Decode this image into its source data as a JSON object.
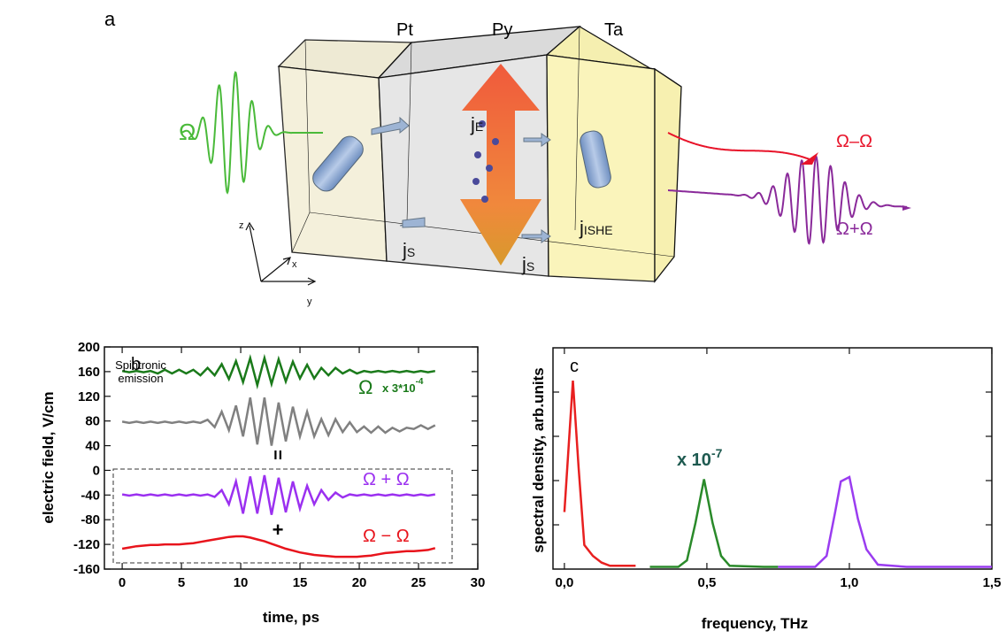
{
  "diagram": {
    "panel": "a",
    "layers": [
      "Pt",
      "Py",
      "Ta"
    ],
    "labels": [
      {
        "text": "Ω"
      },
      {
        "text": "j",
        "sub": "E"
      },
      {
        "text": "j",
        "sub": "S"
      },
      {
        "text": "j",
        "sub": "S"
      },
      {
        "text": "j",
        "sub": "ISHE"
      },
      {
        "text": "Ω–Ω"
      },
      {
        "text": "Ω+Ω"
      },
      {
        "text": "z"
      },
      {
        "text": "x"
      },
      {
        "text": "y"
      }
    ]
  },
  "chart_data": [
    {
      "type": "line",
      "panel": "b",
      "x_label": "time, ps",
      "y_label": "electric field, V/cm",
      "xlim": [
        -1.5,
        30
      ],
      "ylim": [
        -160,
        200
      ],
      "xticks": [
        0,
        5,
        10,
        15,
        20,
        25,
        30
      ],
      "yticks": [
        200,
        160,
        120,
        80,
        40,
        0,
        -40,
        -80,
        -120,
        -160
      ],
      "x": [
        0,
        0.6,
        1.2,
        1.8,
        2.4,
        3,
        3.6,
        4.2,
        4.8,
        5.4,
        6,
        6.6,
        7.2,
        7.8,
        8.4,
        9,
        9.6,
        10.2,
        10.8,
        11.4,
        12,
        12.6,
        13.2,
        13.8,
        14.4,
        15,
        15.6,
        16.2,
        16.8,
        17.4,
        18,
        18.6,
        19.2,
        19.8,
        20.4,
        21,
        21.6,
        22.2,
        22.8,
        23.4,
        24,
        24.6,
        25.2,
        25.8,
        26.4
      ],
      "series": [
        {
          "name": "Ω",
          "color": "#1a7a1a",
          "values": [
            161,
            159,
            161,
            159,
            161,
            157,
            163,
            157,
            163,
            157,
            163,
            154,
            166,
            154,
            172,
            148,
            177,
            143,
            182,
            138,
            182,
            140,
            180,
            144,
            176,
            149,
            171,
            149,
            166,
            154,
            166,
            157,
            163,
            157,
            161,
            159,
            161,
            159,
            161,
            159,
            161,
            159,
            161,
            159,
            161
          ]
        },
        {
          "name": "Spintronic emission",
          "color": "#808080",
          "values": [
            79,
            77,
            79,
            77,
            79,
            77,
            79,
            77,
            79,
            77,
            79,
            77,
            82,
            70,
            95,
            65,
            105,
            55,
            118,
            42,
            118,
            40,
            110,
            47,
            103,
            55,
            95,
            55,
            83,
            57,
            83,
            62,
            78,
            62,
            71,
            61,
            71,
            61,
            69,
            63,
            69,
            67,
            73,
            67,
            73
          ]
        },
        {
          "name": "Ω + Ω",
          "color": "#9b30f0",
          "values": [
            -39,
            -41,
            -39,
            -41,
            -39,
            -41,
            -39,
            -41,
            -39,
            -41,
            -39,
            -41,
            -39,
            -43,
            -32,
            -55,
            -18,
            -70,
            -10,
            -70,
            -8,
            -72,
            -12,
            -68,
            -18,
            -62,
            -25,
            -55,
            -32,
            -48,
            -36,
            -44,
            -39,
            -41,
            -39,
            -41,
            -39,
            -41,
            -39,
            -41,
            -39,
            -41,
            -39,
            -41,
            -39
          ]
        },
        {
          "name": "Ω − Ω",
          "color": "#e8141c",
          "values": [
            -127,
            -125,
            -123,
            -122,
            -121,
            -121,
            -120,
            -120,
            -120,
            -119,
            -118,
            -116,
            -114,
            -112,
            -110,
            -108,
            -107,
            -107,
            -109,
            -112,
            -115,
            -119,
            -123,
            -127,
            -130,
            -133,
            -135,
            -137,
            -138,
            -139,
            -140,
            -140,
            -140,
            -140,
            -139,
            -138,
            -136,
            -134,
            -133,
            -132,
            -131,
            -131,
            -130,
            -129,
            -126
          ]
        }
      ],
      "annotations": [
        {
          "text": "b"
        },
        {
          "text": "x 3*10",
          "sup": "-4"
        },
        {
          "text": "="
        },
        {
          "text": "+"
        }
      ]
    },
    {
      "type": "line",
      "panel": "c",
      "x_label": "frequency, THz",
      "y_label": "spectral density, arb.units",
      "xlim": [
        -0.04,
        1.5
      ],
      "ylim": [
        -0.01,
        1
      ],
      "xticks": [
        {
          "value": 0,
          "label": "0,0"
        },
        {
          "value": 0.5,
          "label": "0,5"
        },
        {
          "value": 1,
          "label": "1,0"
        },
        {
          "value": 1.5,
          "label": "1,5"
        }
      ],
      "series": [
        {
          "color": "#e82020",
          "x": [
            0,
            0.03,
            0.05,
            0.07,
            0.1,
            0.13,
            0.16,
            0.25
          ],
          "values": [
            0.25,
            0.85,
            0.45,
            0.1,
            0.05,
            0.02,
            0.005,
            0.005
          ]
        },
        {
          "color": "#2a8a2a",
          "x": [
            0.3,
            0.4,
            0.43,
            0.46,
            0.49,
            0.52,
            0.55,
            0.58,
            0.7,
            0.75
          ],
          "values": [
            0,
            0,
            0.03,
            0.2,
            0.4,
            0.2,
            0.05,
            0.005,
            0,
            0
          ]
        },
        {
          "color": "#9a3cf0",
          "x": [
            0.75,
            0.88,
            0.92,
            0.95,
            0.97,
            1.0,
            1.03,
            1.06,
            1.1,
            1.2,
            1.5
          ],
          "values": [
            0,
            0,
            0.05,
            0.25,
            0.39,
            0.41,
            0.22,
            0.08,
            0.01,
            0,
            0
          ]
        }
      ],
      "annotations": [
        {
          "text": "c"
        },
        {
          "text": "x 10",
          "sup": "-7"
        }
      ]
    }
  ]
}
